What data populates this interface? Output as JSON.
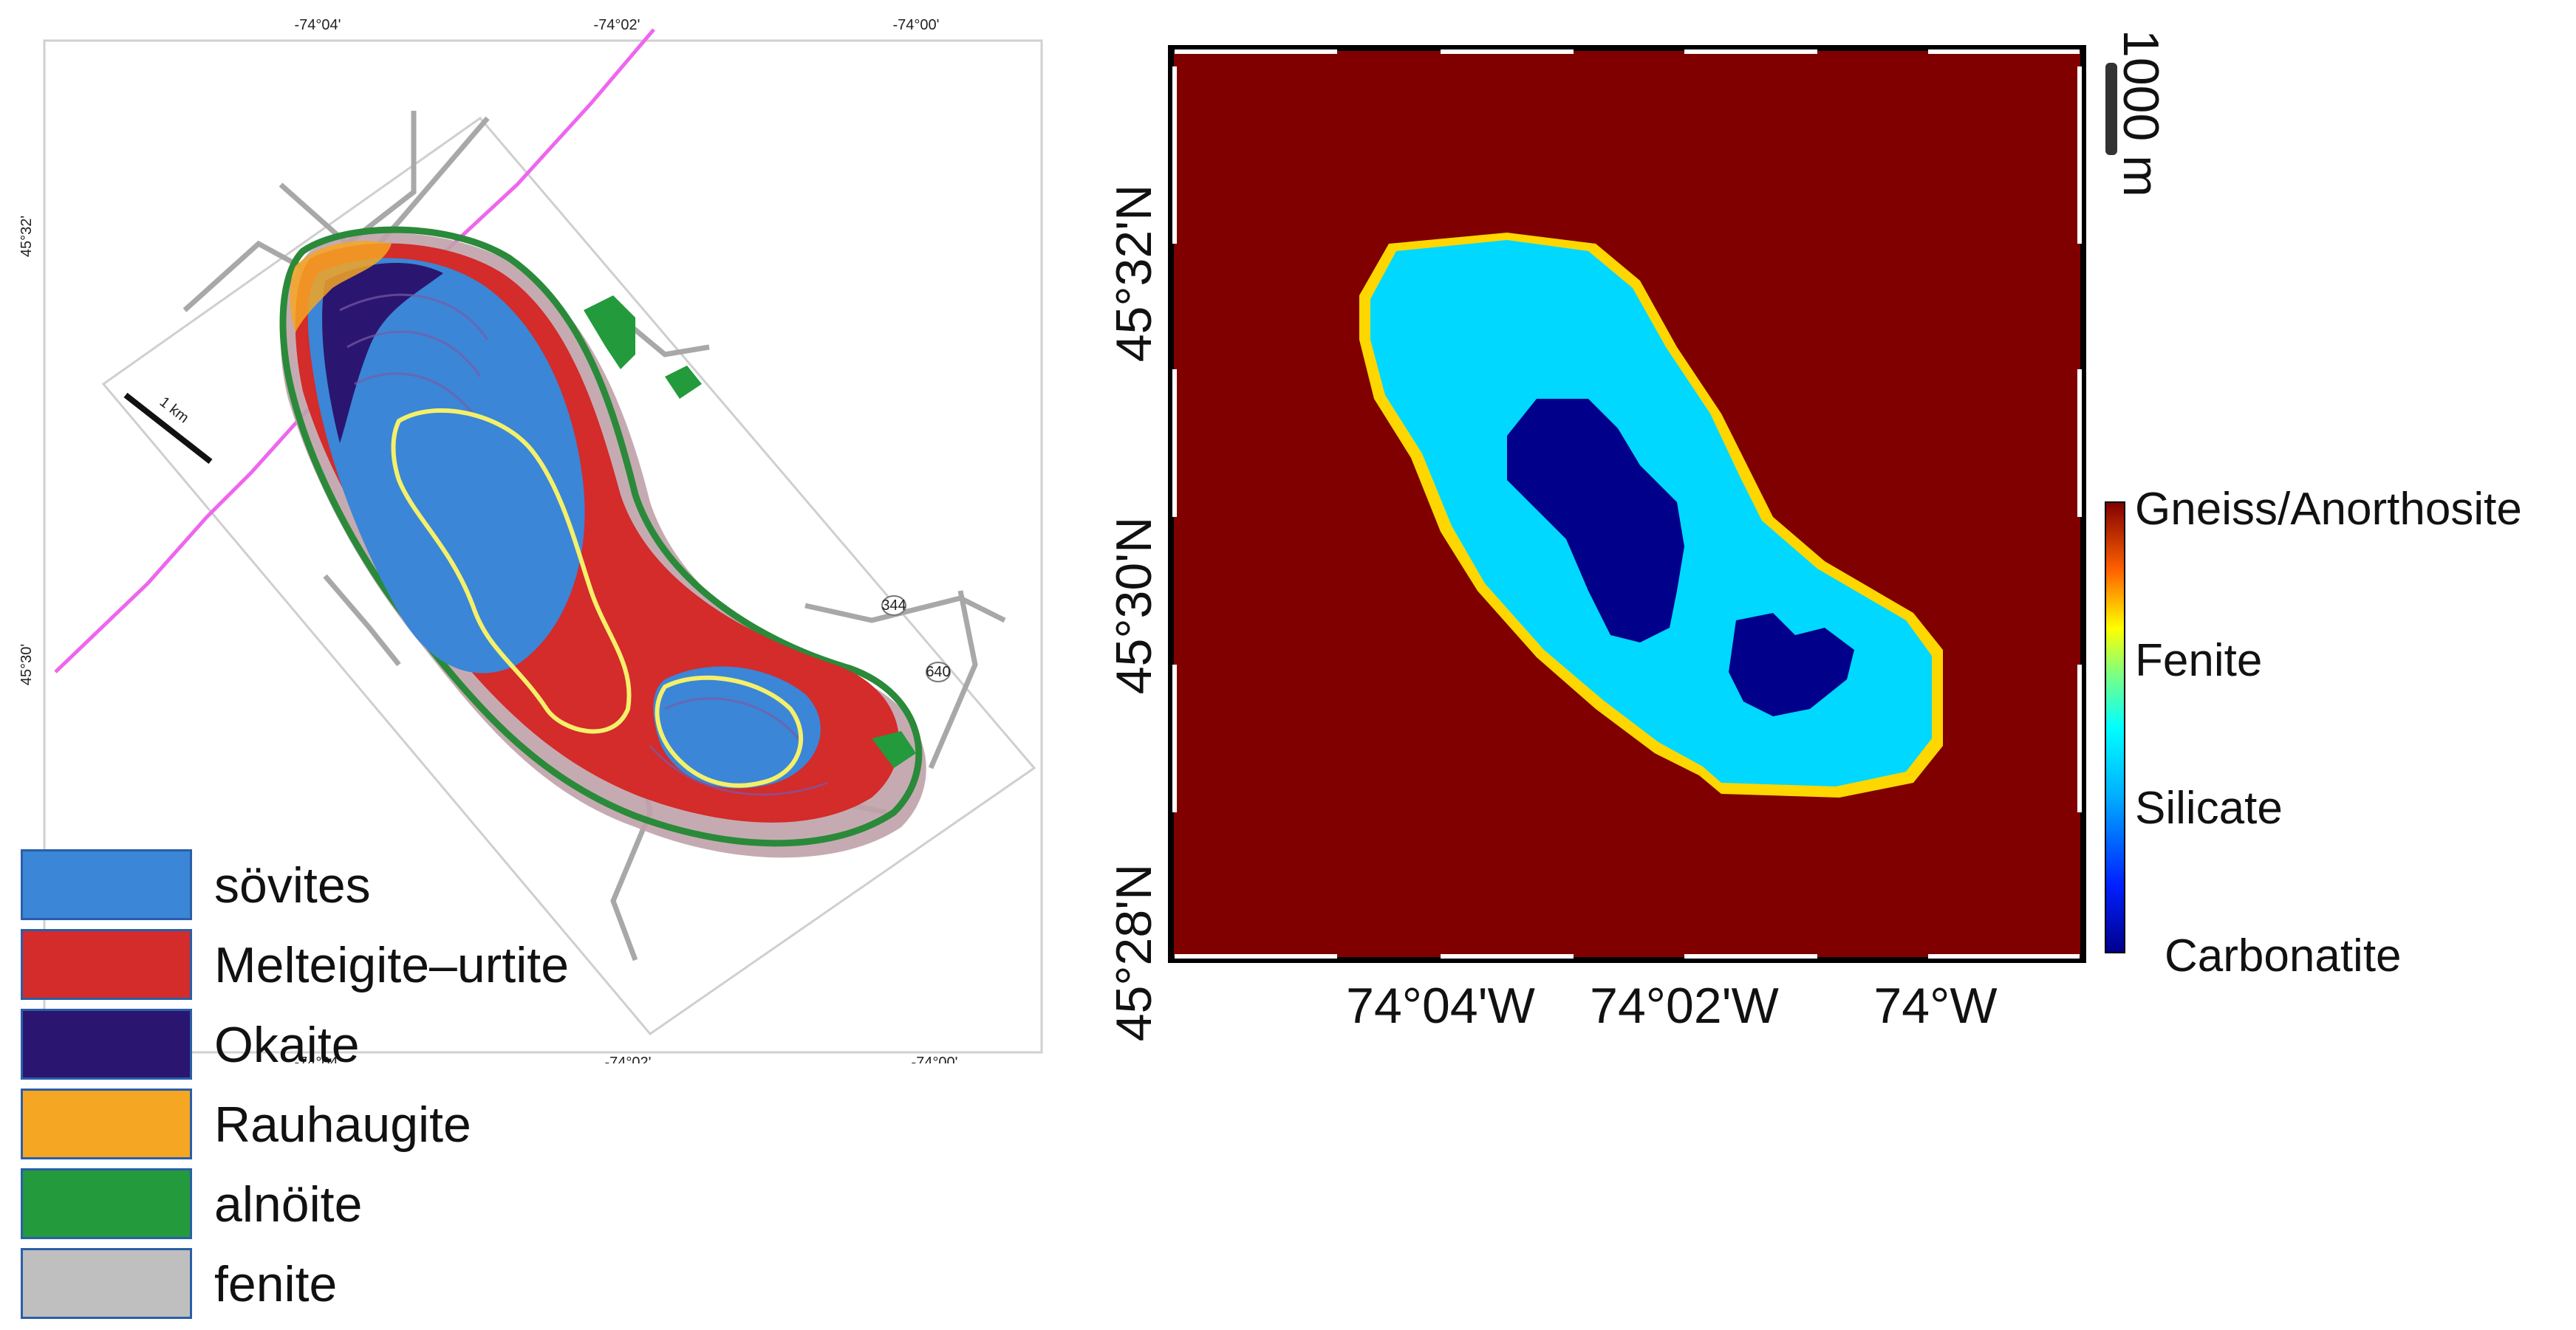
{
  "left_map": {
    "top_ticks": [
      "-74°04'",
      "-74°02'",
      "-74°00'"
    ],
    "bottom_ticks": [
      "-74°04'",
      "-74°02'",
      "-74°00'"
    ],
    "left_ticks": [
      "45°32'",
      "45°30'"
    ],
    "scale_label": "1 km",
    "road_labels": [
      "344",
      "640"
    ],
    "legend": [
      {
        "label": "sövites",
        "color": "#3b86d6"
      },
      {
        "label": "Melteigite–urtite",
        "color": "#d42b2b"
      },
      {
        "label": "Okaite",
        "color": "#2a1670"
      },
      {
        "label": "Rauhaugite",
        "color": "#f5a623"
      },
      {
        "label": "alnöite",
        "color": "#239a3b"
      },
      {
        "label": "fenite",
        "color": "#bfbfbf"
      }
    ]
  },
  "right_map": {
    "y_ticks": [
      "45°32'N",
      "45°30'N",
      "45°28'N"
    ],
    "x_ticks": [
      "74°04'W",
      "74°02'W",
      "74°W"
    ],
    "scale_label": "1000 m",
    "colorbar_labels": [
      "Gneiss/Anorthosite",
      "Fenite",
      "Silicate",
      "Carbonatite"
    ],
    "colors": {
      "gneiss": "#800000",
      "fenite": "#ffd700",
      "silicate": "#00d8ff",
      "carbonatite": "#00008b"
    }
  }
}
